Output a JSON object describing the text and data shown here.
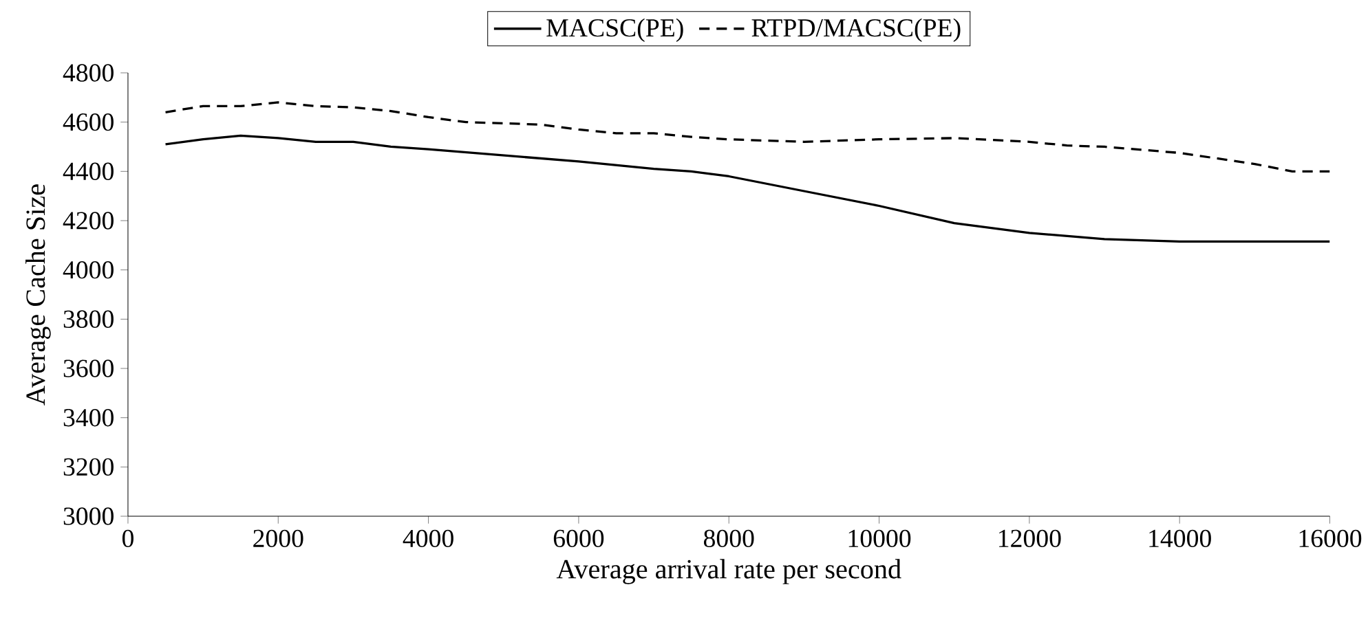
{
  "chart_data": {
    "type": "line",
    "xlabel": "Average arrival rate per second",
    "ylabel": "Average Cache Size",
    "xlim": [
      0,
      16000
    ],
    "xticks": [
      0,
      2000,
      4000,
      6000,
      8000,
      10000,
      12000,
      14000,
      16000
    ],
    "ylim": [
      3000,
      4800
    ],
    "yticks": [
      3000,
      3200,
      3400,
      3600,
      3800,
      4000,
      4200,
      4400,
      4600,
      4800
    ],
    "grid": false,
    "legend": "top",
    "marker": "none",
    "series": [
      {
        "name": "MACSC(PE)",
        "color": "#000000",
        "line_style": "solid",
        "x": [
          500,
          1000,
          1500,
          2000,
          2500,
          3000,
          3500,
          4000,
          5000,
          6000,
          7000,
          7500,
          8000,
          9000,
          10000,
          11000,
          12000,
          13000,
          14000,
          15000,
          16000
        ],
        "values": [
          4510,
          4530,
          4545,
          4535,
          4520,
          4520,
          4500,
          4490,
          4465,
          4440,
          4410,
          4400,
          4380,
          4320,
          4260,
          4190,
          4150,
          4125,
          4115,
          4115,
          4115
        ]
      },
      {
        "name": "RTPD/MACSC(PE)",
        "color": "#000000",
        "line_style": "dashed",
        "x": [
          500,
          1000,
          1500,
          2000,
          2500,
          3000,
          3500,
          4000,
          4500,
          5000,
          5500,
          6000,
          6500,
          7000,
          7500,
          8000,
          9000,
          10000,
          11000,
          12000,
          12500,
          13000,
          14000,
          15000,
          15500,
          16000
        ],
        "values": [
          4640,
          4665,
          4665,
          4680,
          4665,
          4660,
          4645,
          4620,
          4600,
          4595,
          4590,
          4570,
          4555,
          4555,
          4540,
          4530,
          4520,
          4530,
          4535,
          4520,
          4505,
          4500,
          4475,
          4430,
          4400,
          4400
        ]
      }
    ]
  }
}
